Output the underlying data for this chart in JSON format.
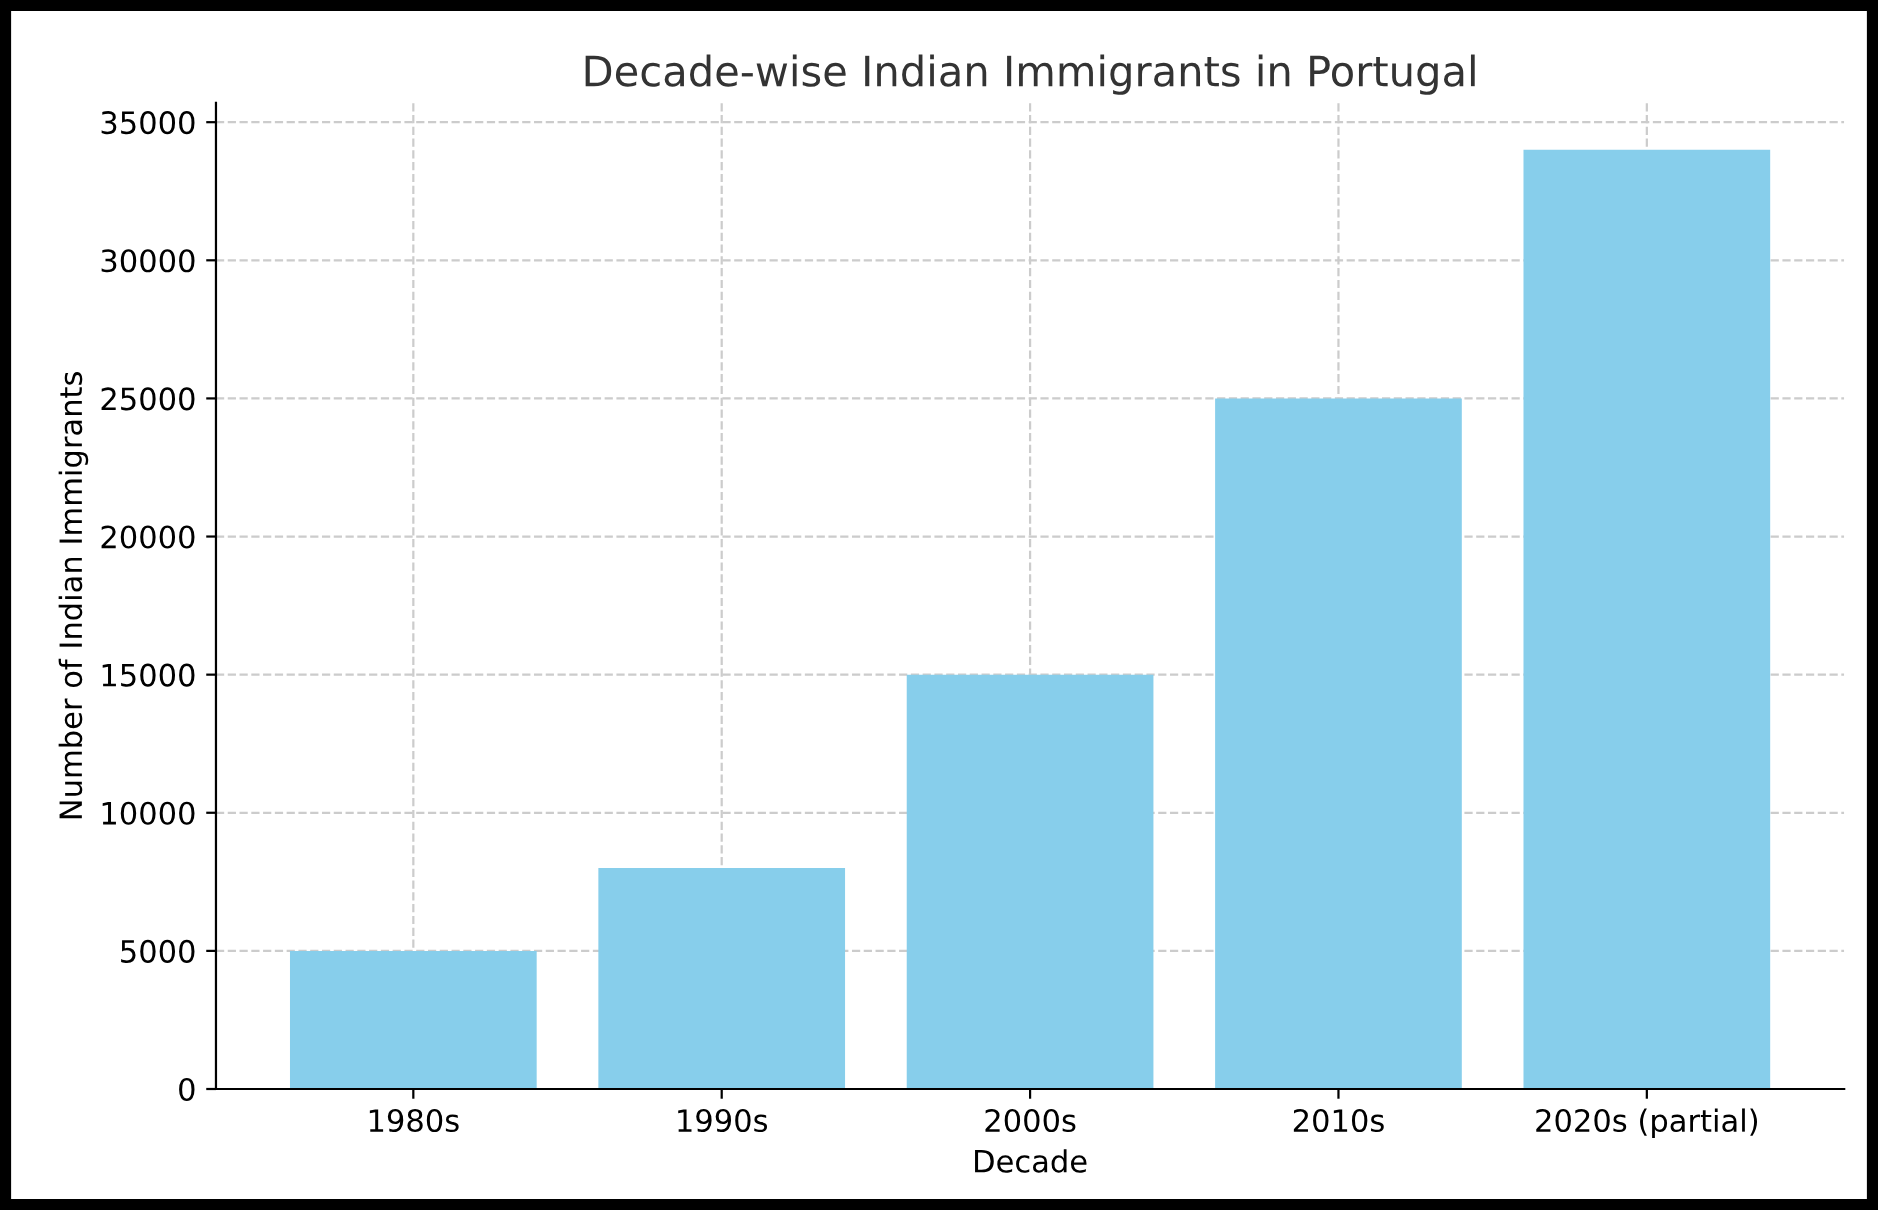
{
  "chart_data": {
    "type": "bar",
    "title": "Decade-wise Indian Immigrants in Portugal",
    "xlabel": "Decade",
    "ylabel": "Number of Indian Immigrants",
    "categories": [
      "1980s",
      "1990s",
      "2000s",
      "2010s",
      "2020s (partial)"
    ],
    "values": [
      5000,
      8000,
      15000,
      25000,
      34000
    ],
    "color": "#87ceeb",
    "ylim": [
      0,
      35700
    ],
    "yticks": [
      0,
      5000,
      10000,
      15000,
      20000,
      25000,
      30000,
      35000
    ],
    "grid": true
  }
}
